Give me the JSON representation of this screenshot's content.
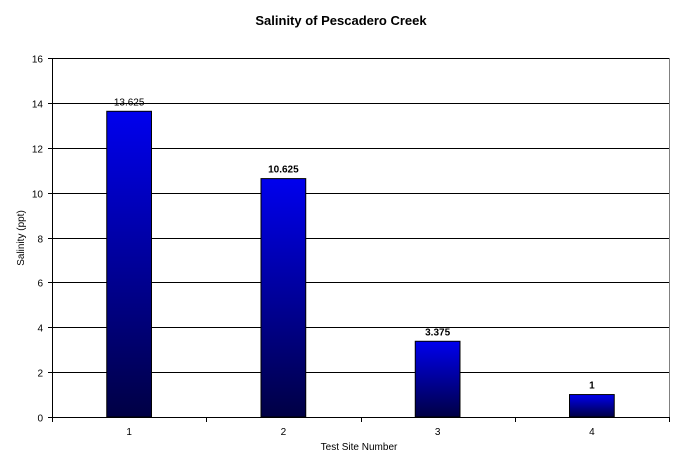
{
  "chart_data": {
    "type": "bar",
    "title": "Salinity of Pescadero Creek",
    "xlabel": "Test Site Number",
    "ylabel": "Salinity (ppt)",
    "categories": [
      "1",
      "2",
      "3",
      "4"
    ],
    "values": [
      13.625,
      10.625,
      3.375,
      1
    ],
    "data_labels": [
      "13.625",
      "10.625",
      "3.375",
      "1"
    ],
    "data_label_bold": [
      false,
      true,
      true,
      true
    ],
    "ylim": [
      0,
      16
    ],
    "yticks": [
      0,
      2,
      4,
      6,
      8,
      10,
      12,
      14,
      16
    ],
    "grid": true,
    "bar_color_top": "#0000ee",
    "bar_color_bottom": "#000044"
  }
}
